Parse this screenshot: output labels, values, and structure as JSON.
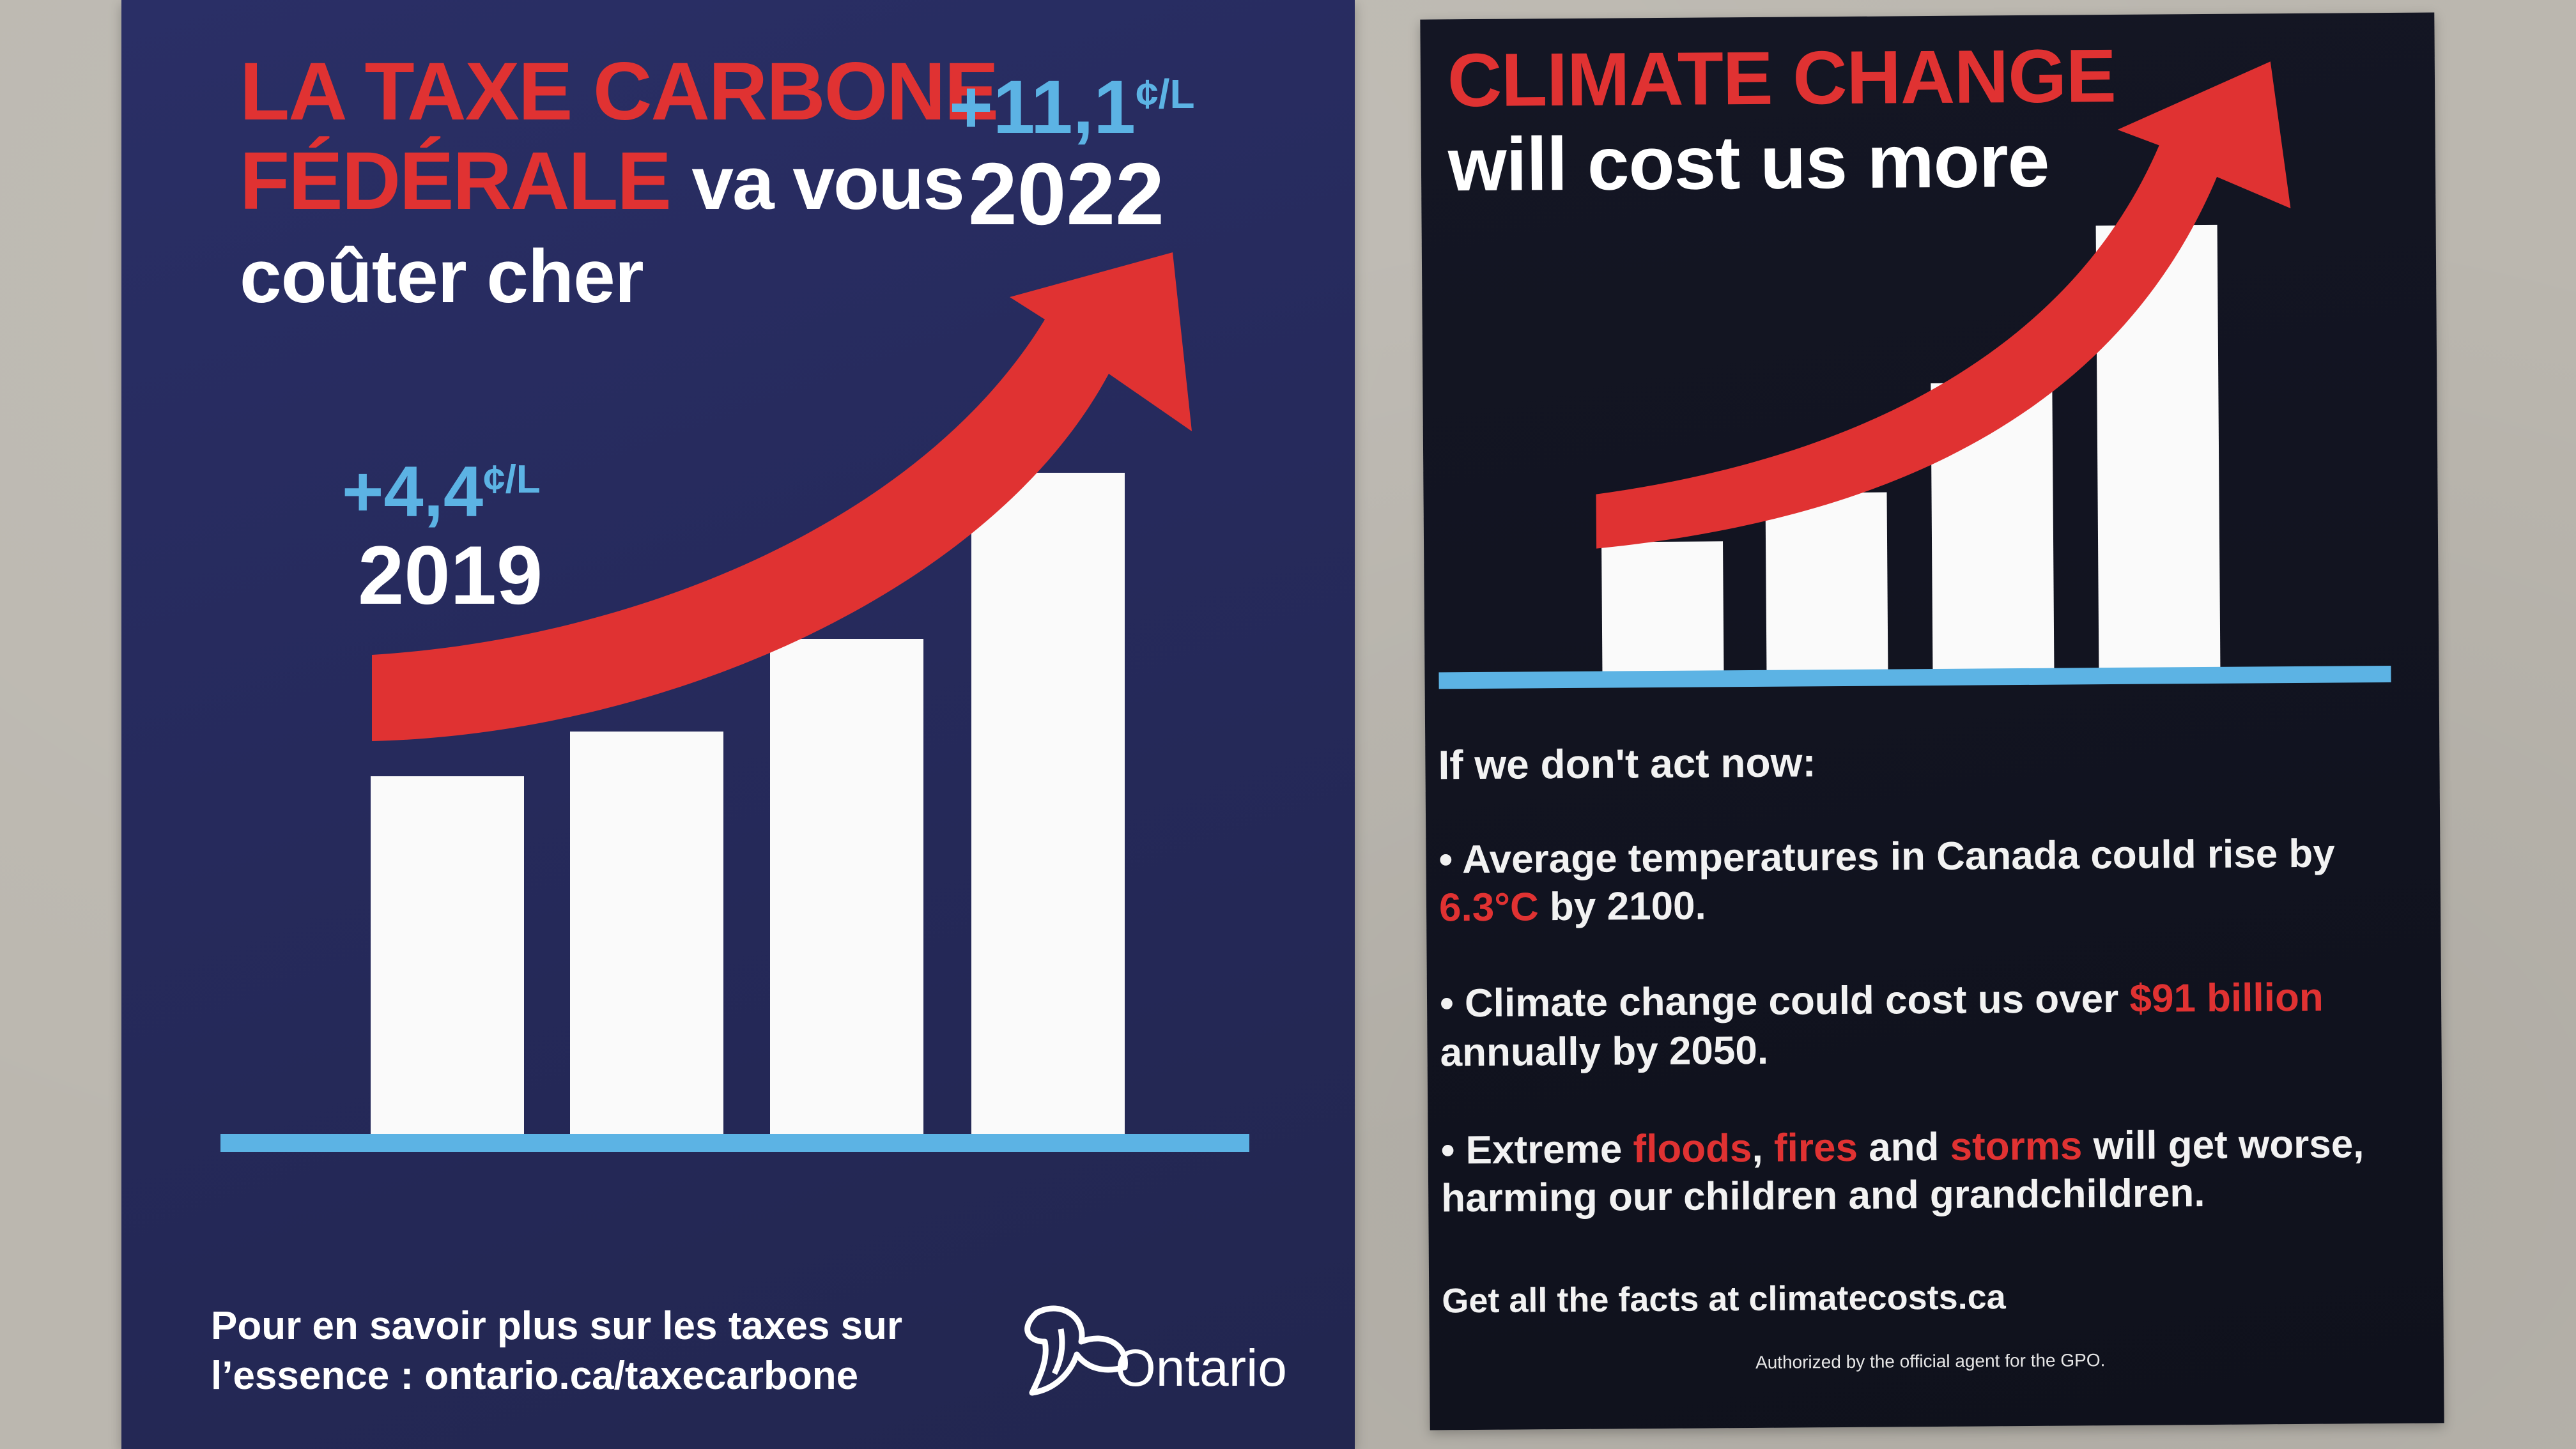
{
  "left_flyer": {
    "headline_red_1": "LA TAXE CARBONE",
    "headline_red_2": "FÉDÉRALE",
    "headline_white_2": "va vous",
    "headline_white_3": "coûter cher",
    "label_2019_amount": "+4,4",
    "label_2019_unit": "¢/L",
    "label_2019_year": "2019",
    "label_2022_amount": "+11,1",
    "label_2022_unit": "¢/L",
    "label_2022_year": "2022",
    "footer_line_1": "Pour en savoir plus sur les taxes sur",
    "footer_line_2": "l’essence : ontario.ca/taxecarbone",
    "logo_text": "Ontario"
  },
  "right_flyer": {
    "headline_red": "CLIMATE CHANGE",
    "headline_white": "will cost us more",
    "intro": "If we don't act now:",
    "bullet_1_a": "Average temperatures in Canada could rise by",
    "bullet_1_highlight": "6.3°C",
    "bullet_1_b": "by 2100.",
    "bullet_2_a": "Climate change could cost us over",
    "bullet_2_highlight": "$91 billion",
    "bullet_2_b": "annually by 2050.",
    "bullet_3_a": "Extreme",
    "bullet_3_h1": "floods",
    "bullet_3_sep1": ",",
    "bullet_3_h2": "fires",
    "bullet_3_sep2": "and",
    "bullet_3_h3": "storms",
    "bullet_3_b": "will get worse,",
    "bullet_3_c": "harming our children and grandchildren.",
    "facts_line": "Get all the facts at climatecosts.ca",
    "authorized_line": "Authorized by the official agent for the GPO."
  },
  "colors": {
    "red": "#e03232",
    "light_blue": "#5cb3e4",
    "navy": "#272b5e",
    "black_card": "#12141f",
    "white": "#ffffff"
  },
  "icons": [
    "trillium-icon",
    "up-arrow-icon",
    "bullet-dot-icon"
  ]
}
